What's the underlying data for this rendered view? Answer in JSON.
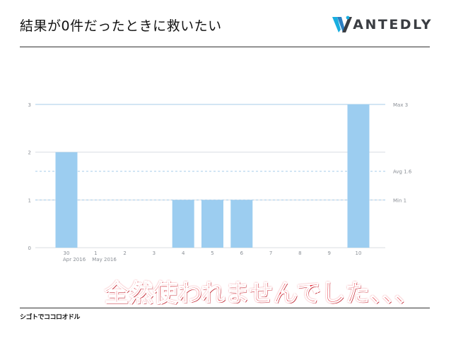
{
  "slide": {
    "title": "結果が0件だったときに救いたい",
    "brand": "ANTEDLY",
    "callout": "全然使われませんでした、、、",
    "footer_logo": "シゴトでココロオドル"
  },
  "colors": {
    "bar": "#9ccdf0",
    "grid": "#d9dde2",
    "ref_line": "#a7cdea",
    "axis_text": "#8a8f96"
  },
  "chart_data": {
    "type": "bar",
    "title": "",
    "xlabel": "",
    "ylabel": "",
    "categories": [
      "30",
      "1",
      "2",
      "3",
      "4",
      "5",
      "6",
      "7",
      "8",
      "9",
      "10"
    ],
    "category_sublabels": [
      "Apr 2016",
      "May 2016",
      "",
      "",
      "",
      "",
      "",
      "",
      "",
      "",
      ""
    ],
    "values": [
      2,
      0,
      0,
      0,
      1,
      1,
      1,
      0,
      0,
      0,
      3
    ],
    "ylim": [
      0,
      3
    ],
    "yticks": [
      "0",
      "1",
      "2",
      "3"
    ],
    "reference_lines": [
      {
        "label": "Max 3",
        "value": 3
      },
      {
        "label": "Avg 1.6",
        "value": 1.6
      },
      {
        "label": "Min 1",
        "value": 1
      }
    ],
    "grid": true
  }
}
